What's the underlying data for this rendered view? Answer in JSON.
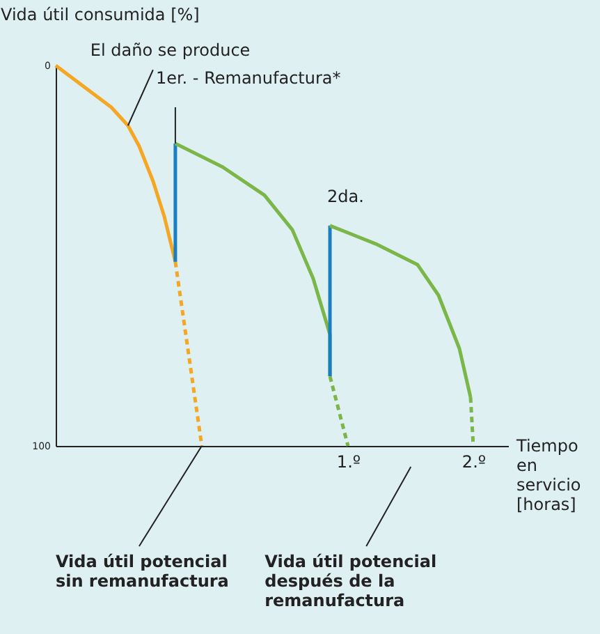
{
  "chart_data": {
    "type": "line",
    "ylabel": "Vida útil consumida [%]",
    "xlabel": "Tiempo en servicio [horas]",
    "xlim": [
      -1.333,
      2.278
    ],
    "xticks": [
      {
        "value": 1,
        "label": "1.º"
      },
      {
        "value": 2,
        "label": "2.º"
      }
    ],
    "ylim": [
      100,
      0
    ],
    "yticks": [
      0,
      100
    ],
    "series": [
      {
        "color": "#f5a623",
        "line_style": "solid",
        "x": [
          -1.333,
          -1.111,
          -0.889,
          -0.756,
          -0.667,
          -0.556,
          -0.467,
          -0.378
        ],
        "values": [
          0,
          5.5,
          11,
          15.8,
          21.2,
          30.4,
          39.6,
          51.6
        ]
      },
      {
        "color": "#f5a623",
        "line_style": "dashed",
        "x": [
          -0.378,
          -0.167
        ],
        "values": [
          51.6,
          100
        ]
      },
      {
        "color": "#1a7fc1",
        "line_style": "solid",
        "x": [
          -0.378,
          -0.378
        ],
        "values": [
          51.6,
          20.5
        ]
      },
      {
        "color": "#7ab648",
        "line_style": "solid",
        "x": [
          -0.378,
          0.0,
          0.333,
          0.556,
          0.722,
          0.856,
          0.856
        ],
        "values": [
          20.5,
          26.7,
          34.1,
          43.2,
          56,
          70.7,
          81.7
        ]
      },
      {
        "color": "#7ab648",
        "line_style": "dashed",
        "x": [
          0.856,
          1
        ],
        "values": [
          81.7,
          100
        ]
      },
      {
        "color": "#1a7fc1",
        "line_style": "solid",
        "x": [
          0.856,
          0.856
        ],
        "values": [
          81.7,
          42.1
        ]
      },
      {
        "color": "#7ab648",
        "line_style": "solid",
        "x": [
          0.856,
          1.222,
          1.556,
          1.722,
          1.889,
          1.978
        ],
        "values": [
          42.1,
          46.9,
          52.4,
          60.4,
          74.4,
          87.2
        ]
      },
      {
        "color": "#7ab648",
        "line_style": "dashed",
        "x": [
          1.978,
          2
        ],
        "values": [
          87.2,
          100
        ]
      }
    ],
    "annotations": [
      {
        "text": "El daño se produce",
        "x": -0.756,
        "y": 15.8
      },
      {
        "text": "1er. - Remanufactura*",
        "x": -0.378,
        "y": 20.5
      },
      {
        "text": "2da.",
        "x": 0.856,
        "y": 42.1
      },
      {
        "text": "Vida útil potencial sin remanufactura",
        "x": -0.167,
        "y": 100
      },
      "Vida útil potencial después de la remanufactura"
    ]
  }
}
